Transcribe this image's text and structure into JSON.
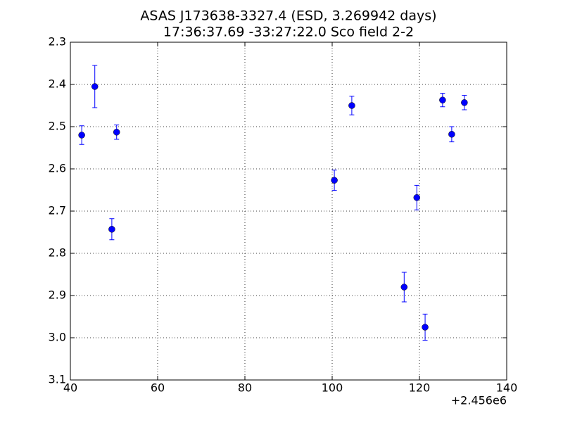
{
  "chart_data": {
    "type": "errorbar-scatter",
    "title": "ASAS J173638-3327.4 (ESD, 3.269942 days)",
    "subtitle": "17:36:37.69 -33:27:22.0 Sco field 2-2",
    "x": [
      42.6,
      45.6,
      49.5,
      50.6,
      100.5,
      104.5,
      116.5,
      119.4,
      121.3,
      125.3,
      127.4,
      130.3
    ],
    "values": [
      2.52,
      2.405,
      2.743,
      2.513,
      2.627,
      2.45,
      2.88,
      2.668,
      2.975,
      2.437,
      2.518,
      2.443
    ],
    "errors": [
      0.022,
      0.05,
      0.025,
      0.017,
      0.024,
      0.022,
      0.035,
      0.029,
      0.031,
      0.016,
      0.018,
      0.017
    ],
    "color": "#0000ff",
    "xlim": [
      40,
      140
    ],
    "xticks": [
      40,
      60,
      80,
      100,
      120,
      140
    ],
    "x_offset_label": "+2.456e6",
    "ylim": [
      3.1,
      2.3
    ],
    "y_inverted": true,
    "yticks": [
      2.3,
      2.4,
      2.5,
      2.6,
      2.7,
      2.8,
      2.9,
      {
        "value": 3,
        "label": "3.0"
      },
      3.1
    ],
    "grid": true
  }
}
